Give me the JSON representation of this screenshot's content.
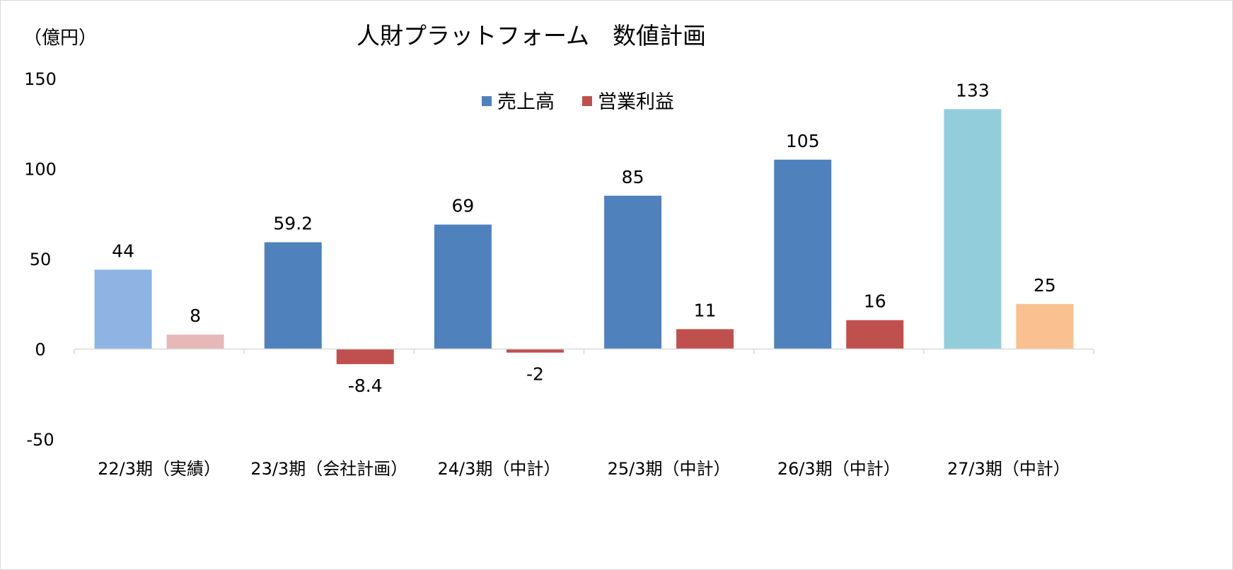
{
  "chart_data": {
    "type": "bar",
    "title": "人財プラットフォーム　数値計画",
    "unit_label": "（億円）",
    "categories": [
      "22/3期（実績）",
      "23/3期（会社計画）",
      "24/3期（中計）",
      "25/3期（中計）",
      "26/3期（中計）",
      "27/3期（中計）"
    ],
    "series": [
      {
        "name": "売上高",
        "color": "#4f81bd",
        "values": [
          44,
          59.2,
          69,
          85,
          105,
          133
        ],
        "labels": [
          "44",
          "59.2",
          "69",
          "85",
          "105",
          "133"
        ],
        "point_colors": [
          "#8db4e2",
          "#4f81bd",
          "#4f81bd",
          "#4f81bd",
          "#4f81bd",
          "#92cddc"
        ]
      },
      {
        "name": "営業利益",
        "color": "#c0504d",
        "values": [
          8,
          -8.4,
          -2,
          11,
          16,
          25
        ],
        "labels": [
          "8",
          "-8.4",
          "-2",
          "11",
          "16",
          "25"
        ],
        "point_colors": [
          "#e6b9b8",
          "#c0504d",
          "#c0504d",
          "#c0504d",
          "#c0504d",
          "#fac090"
        ]
      }
    ],
    "ylim": [
      -50,
      150
    ],
    "yticks": [
      -50,
      0,
      50,
      100,
      150
    ],
    "ytick_labels": [
      "-50",
      "0",
      "50",
      "100",
      "150"
    ],
    "grid": false,
    "legend": "top-center"
  }
}
